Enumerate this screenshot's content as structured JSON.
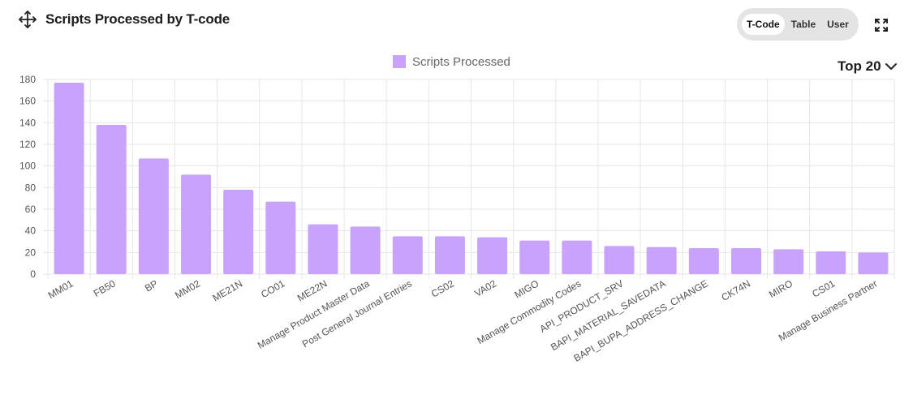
{
  "header": {
    "title": "Scripts Processed by T-code",
    "move_icon": "move-icon"
  },
  "toggle": {
    "options": [
      "T-Code",
      "Table",
      "User"
    ],
    "selected": "T-Code"
  },
  "expand_icon": "expand-icon",
  "top_selector": {
    "label": "Top 20",
    "icon": "chevron-down-icon"
  },
  "colors": {
    "bar": "#c8a2fb",
    "grid": "#e6e6e6",
    "toggle_bg": "#e4e4e4"
  },
  "chart_data": {
    "type": "bar",
    "title": "",
    "xlabel": "",
    "ylabel": "",
    "legend": "top-center",
    "grid": true,
    "ylim": [
      0,
      180
    ],
    "yticks": [
      0,
      20,
      40,
      60,
      80,
      100,
      120,
      140,
      160,
      180
    ],
    "categories": [
      "MM01",
      "FB50",
      "BP",
      "MM02",
      "ME21N",
      "CO01",
      "ME22N",
      "Manage Product Master Data",
      "Post General Journal Entries",
      "CS02",
      "VA02",
      "MIGO",
      "Manage Commodity Codes",
      "API_PRODUCT_SRV",
      "BAPI_MATERIAL_SAVEDATA",
      "BAPI_BUPA_ADDRESS_CHANGE",
      "CK74N",
      "MIRO",
      "CS01",
      "Manage Business Partner"
    ],
    "series": [
      {
        "name": "Scripts Processed",
        "values": [
          177,
          138,
          107,
          92,
          78,
          67,
          46,
          44,
          35,
          35,
          34,
          31,
          31,
          26,
          25,
          24,
          24,
          23,
          21,
          20
        ]
      }
    ]
  }
}
